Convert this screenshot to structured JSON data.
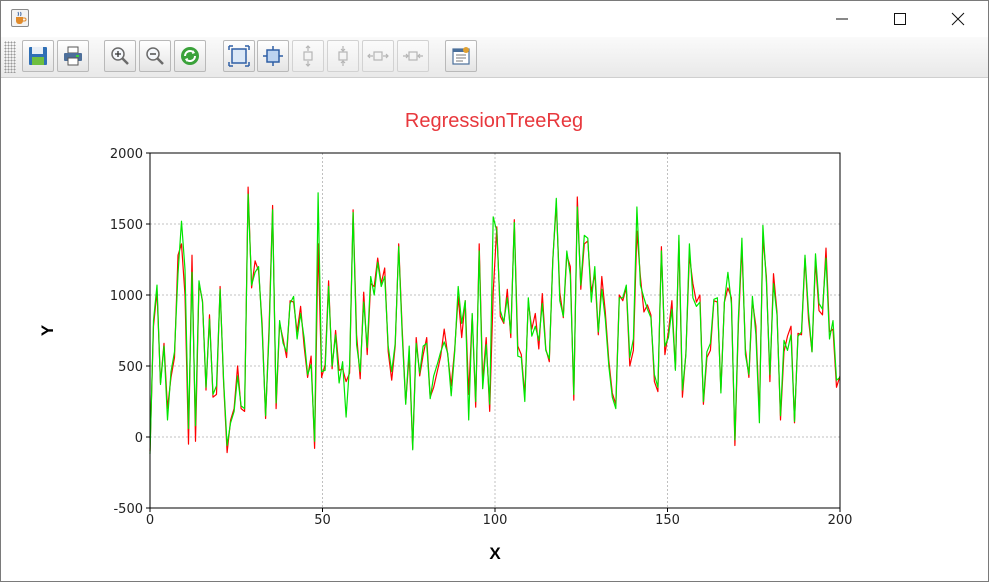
{
  "window": {
    "title": "",
    "icons": {
      "app": "java-cup-icon",
      "minimize": "minimize-icon",
      "maximize": "maximize-icon",
      "close": "close-icon"
    }
  },
  "toolbar": {
    "buttons": [
      {
        "name": "save-button",
        "icon": "floppy-disk-icon",
        "enabled": true
      },
      {
        "name": "print-button",
        "icon": "printer-icon",
        "enabled": true
      },
      {
        "name": "zoom-in-button",
        "icon": "zoom-in-icon",
        "enabled": true
      },
      {
        "name": "zoom-out-button",
        "icon": "zoom-out-icon",
        "enabled": true
      },
      {
        "name": "refresh-button",
        "icon": "refresh-icon",
        "enabled": true
      },
      {
        "name": "fit-all-button",
        "icon": "fit-all-icon",
        "enabled": true
      },
      {
        "name": "fit-selection-button",
        "icon": "fit-selection-icon",
        "enabled": true
      },
      {
        "name": "fit-vertical-button",
        "icon": "fit-vertical-icon",
        "enabled": false
      },
      {
        "name": "shrink-vertical-button",
        "icon": "shrink-vertical-icon",
        "enabled": false
      },
      {
        "name": "fit-horizontal-button",
        "icon": "fit-horizontal-icon",
        "enabled": false
      },
      {
        "name": "shrink-horizontal-button",
        "icon": "shrink-horizontal-icon",
        "enabled": false
      },
      {
        "name": "properties-button",
        "icon": "properties-icon",
        "enabled": true
      }
    ]
  },
  "chart_data": {
    "type": "line",
    "title": "RegressionTreeReg",
    "xlabel": "X",
    "ylabel": "Y",
    "xlim": [
      0,
      200
    ],
    "ylim": [
      -500,
      2000
    ],
    "xticks": [
      "0",
      "50",
      "100",
      "150",
      "200"
    ],
    "yticks": [
      "-500",
      "0",
      "500",
      "1000",
      "1500",
      "2000"
    ],
    "grid": true,
    "legend": "none",
    "colors": {
      "title": "#e8383d",
      "series1": "#ff0000",
      "series2": "#00e600",
      "grid": "#c0c0c0",
      "frame": "#000000"
    },
    "series": [
      {
        "color": "#ff0000",
        "values": [
          -100,
          780,
          1030,
          380,
          660,
          200,
          420,
          560,
          1280,
          1360,
          1000,
          -50,
          1280,
          -30,
          1080,
          960,
          330,
          860,
          280,
          300,
          1060,
          380,
          -110,
          120,
          200,
          500,
          200,
          180,
          1760,
          1050,
          1240,
          1170,
          800,
          130,
          780,
          1630,
          200,
          800,
          690,
          560,
          960,
          950,
          740,
          920,
          640,
          420,
          570,
          -80,
          1360,
          420,
          510,
          1100,
          480,
          750,
          470,
          480,
          390,
          450,
          1600,
          720,
          410,
          1020,
          580,
          1080,
          1060,
          1260,
          1080,
          1190,
          600,
          400,
          640,
          1360,
          760,
          240,
          580,
          -80,
          700,
          430,
          580,
          700,
          280,
          350,
          460,
          570,
          760,
          580,
          360,
          620,
          990,
          700,
          960,
          300,
          860,
          210,
          1360,
          390,
          700,
          180,
          1020,
          1480,
          850,
          800,
          1040,
          700,
          1530,
          640,
          580,
          290,
          950,
          760,
          870,
          620,
          1010,
          620,
          530,
          1250,
          1640,
          1020,
          840,
          1280,
          1200,
          260,
          1690,
          1040,
          1360,
          1380,
          1020,
          1150,
          720,
          1130,
          880,
          540,
          310,
          230,
          1000,
          960,
          1050,
          500,
          610,
          1450,
          1130,
          880,
          930,
          860,
          390,
          320,
          1340,
          580,
          740,
          960,
          480,
          1380,
          280,
          590,
          1280,
          1080,
          950,
          1000,
          230,
          560,
          610,
          960,
          950,
          330,
          950,
          1050,
          980,
          -60,
          790,
          1340,
          620,
          420,
          960,
          780,
          160,
          1410,
          1130,
          390,
          1150,
          880,
          120,
          600,
          710,
          780,
          100,
          730,
          720,
          1260,
          830,
          600,
          1240,
          890,
          860,
          1330,
          740,
          760,
          350,
          430
        ]
      },
      {
        "color": "#00e600",
        "values": [
          -120,
          820,
          1070,
          370,
          640,
          120,
          460,
          600,
          1150,
          1520,
          1180,
          60,
          1160,
          80,
          1100,
          950,
          350,
          830,
          300,
          360,
          1040,
          400,
          -60,
          100,
          180,
          430,
          220,
          200,
          1710,
          1070,
          1160,
          1200,
          760,
          150,
          730,
          1600,
          240,
          820,
          660,
          600,
          940,
          990,
          690,
          870,
          700,
          440,
          510,
          -30,
          1720,
          460,
          470,
          1060,
          500,
          720,
          380,
          530,
          140,
          510,
          1580,
          650,
          460,
          950,
          630,
          1130,
          1000,
          1230,
          1060,
          1130,
          640,
          460,
          660,
          1340,
          720,
          230,
          640,
          -90,
          660,
          450,
          640,
          660,
          270,
          430,
          510,
          600,
          670,
          590,
          290,
          600,
          1060,
          800,
          960,
          120,
          870,
          250,
          1310,
          340,
          650,
          230,
          1550,
          1450,
          890,
          810,
          980,
          730,
          1510,
          570,
          560,
          250,
          980,
          710,
          780,
          680,
          940,
          610,
          550,
          1240,
          1680,
          960,
          850,
          1310,
          1140,
          300,
          1620,
          1070,
          1420,
          1400,
          950,
          1200,
          740,
          1040,
          830,
          500,
          280,
          200,
          980,
          980,
          1070,
          560,
          690,
          1620,
          1070,
          980,
          900,
          840,
          440,
          350,
          1310,
          640,
          700,
          900,
          470,
          1420,
          330,
          580,
          1360,
          980,
          920,
          950,
          250,
          600,
          660,
          970,
          980,
          310,
          950,
          1160,
          940,
          -20,
          840,
          1400,
          580,
          440,
          990,
          720,
          100,
          1490,
          1090,
          440,
          1080,
          860,
          150,
          680,
          610,
          720,
          110,
          710,
          740,
          1280,
          880,
          600,
          1290,
          940,
          900,
          1260,
          690,
          820,
          400,
          420
        ]
      }
    ]
  }
}
